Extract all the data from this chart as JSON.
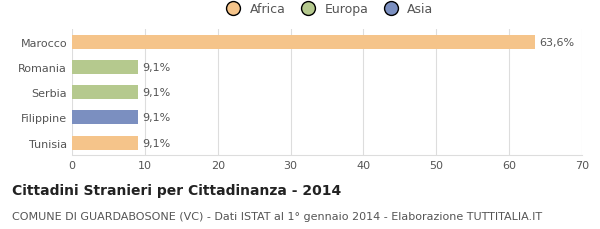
{
  "categories": [
    "Tunisia",
    "Filippine",
    "Serbia",
    "Romania",
    "Marocco"
  ],
  "values": [
    9.1,
    9.1,
    9.1,
    9.1,
    63.6
  ],
  "colors": [
    "#f5c48a",
    "#7b8fc0",
    "#b5c98e",
    "#b5c98e",
    "#f5c48a"
  ],
  "labels": [
    "9,1%",
    "9,1%",
    "9,1%",
    "9,1%",
    "63,6%"
  ],
  "legend": [
    {
      "label": "Africa",
      "color": "#f5c48a"
    },
    {
      "label": "Europa",
      "color": "#b5c98e"
    },
    {
      "label": "Asia",
      "color": "#7b8fc0"
    }
  ],
  "xlim": [
    0,
    70
  ],
  "xticks": [
    0,
    10,
    20,
    30,
    40,
    50,
    60,
    70
  ],
  "title": "Cittadini Stranieri per Cittadinanza - 2014",
  "subtitle": "COMUNE DI GUARDABOSONE (VC) - Dati ISTAT al 1° gennaio 2014 - Elaborazione TUTTITALIA.IT",
  "title_fontsize": 10,
  "subtitle_fontsize": 8,
  "bar_height": 0.55,
  "label_fontsize": 8,
  "tick_fontsize": 8,
  "legend_fontsize": 9,
  "background_color": "#ffffff",
  "grid_color": "#dddddd",
  "text_color": "#555555",
  "title_color": "#222222"
}
